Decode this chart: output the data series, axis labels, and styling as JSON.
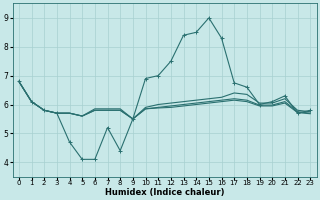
{
  "xlabel": "Humidex (Indice chaleur)",
  "bg_color": "#c8e8e8",
  "grid_color": "#a8d0d0",
  "line_color": "#2a7070",
  "xlim": [
    -0.5,
    23.5
  ],
  "ylim": [
    3.5,
    9.5
  ],
  "xticks": [
    0,
    1,
    2,
    3,
    4,
    5,
    6,
    7,
    8,
    9,
    10,
    11,
    12,
    13,
    14,
    15,
    16,
    17,
    18,
    19,
    20,
    21,
    22,
    23
  ],
  "yticks": [
    4,
    5,
    6,
    7,
    8,
    9
  ],
  "line_main_x": [
    0,
    1,
    2,
    3,
    4,
    5,
    6,
    7,
    8,
    9,
    10,
    11,
    12,
    13,
    14,
    15,
    16,
    17,
    18,
    19,
    20,
    21,
    22,
    23
  ],
  "line_main_y": [
    6.8,
    6.1,
    5.8,
    5.7,
    4.7,
    4.1,
    4.1,
    5.2,
    4.4,
    5.5,
    6.9,
    7.0,
    7.5,
    8.4,
    8.5,
    9.0,
    8.3,
    6.75,
    6.6,
    6.0,
    6.1,
    6.3,
    5.7,
    5.8
  ],
  "line_flat1_x": [
    0,
    1,
    2,
    3,
    4,
    5,
    6,
    7,
    8,
    9,
    10,
    11,
    12,
    13,
    14,
    15,
    16,
    17,
    18,
    19,
    20,
    21,
    22,
    23
  ],
  "line_flat1_y": [
    6.8,
    6.1,
    5.8,
    5.7,
    5.7,
    5.6,
    5.85,
    5.85,
    5.85,
    5.5,
    5.9,
    6.0,
    6.05,
    6.1,
    6.15,
    6.2,
    6.25,
    6.4,
    6.35,
    6.05,
    6.05,
    6.2,
    5.8,
    5.75
  ],
  "line_flat2_x": [
    0,
    1,
    2,
    3,
    4,
    5,
    6,
    7,
    8,
    9,
    10,
    11,
    12,
    13,
    14,
    15,
    16,
    17,
    18,
    19,
    20,
    21,
    22,
    23
  ],
  "line_flat2_y": [
    6.8,
    6.1,
    5.8,
    5.7,
    5.7,
    5.6,
    5.8,
    5.8,
    5.8,
    5.5,
    5.85,
    5.9,
    5.95,
    6.0,
    6.05,
    6.1,
    6.15,
    6.2,
    6.15,
    5.98,
    5.98,
    6.1,
    5.75,
    5.7
  ],
  "line_flat3_x": [
    0,
    1,
    2,
    3,
    4,
    5,
    6,
    7,
    8,
    9,
    10,
    11,
    12,
    13,
    14,
    15,
    16,
    17,
    18,
    19,
    20,
    21,
    22,
    23
  ],
  "line_flat3_y": [
    6.8,
    6.1,
    5.8,
    5.7,
    5.7,
    5.6,
    5.8,
    5.8,
    5.8,
    5.5,
    5.85,
    5.88,
    5.9,
    5.95,
    6.0,
    6.05,
    6.1,
    6.15,
    6.1,
    5.95,
    5.95,
    6.05,
    5.72,
    5.68
  ],
  "linewidth": 0.8,
  "markersize": 3.0
}
